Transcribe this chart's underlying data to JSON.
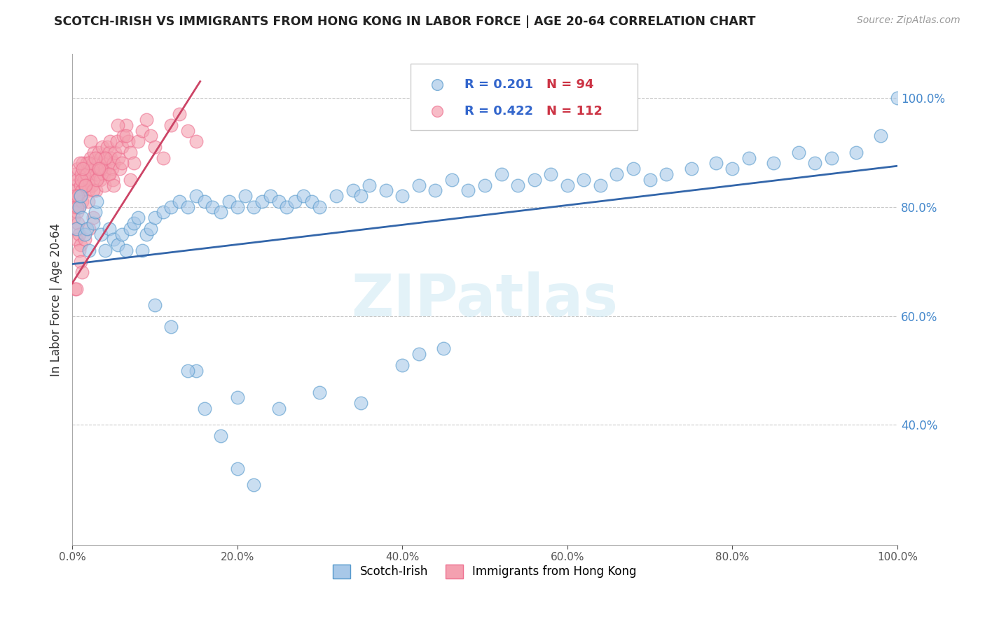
{
  "title": "SCOTCH-IRISH VS IMMIGRANTS FROM HONG KONG IN LABOR FORCE | AGE 20-64 CORRELATION CHART",
  "source": "Source: ZipAtlas.com",
  "ylabel": "In Labor Force | Age 20-64",
  "xlim": [
    0,
    1.0
  ],
  "ylim": [
    0.18,
    1.08
  ],
  "xticks": [
    0.0,
    0.2,
    0.4,
    0.6,
    0.8,
    1.0
  ],
  "xticklabels": [
    "0.0%",
    "20.0%",
    "40.0%",
    "60.0%",
    "80.0%",
    "100.0%"
  ],
  "yticks": [
    0.4,
    0.6,
    0.8,
    1.0
  ],
  "yticklabels": [
    "40.0%",
    "60.0%",
    "80.0%",
    "100.0%"
  ],
  "blue_R": 0.201,
  "blue_N": 94,
  "pink_R": 0.422,
  "pink_N": 112,
  "blue_color": "#a8c8e8",
  "pink_color": "#f4a0b0",
  "blue_edge_color": "#5599cc",
  "pink_edge_color": "#ee7090",
  "blue_line_color": "#3366aa",
  "pink_line_color": "#cc4466",
  "legend_blue_label": "Scotch-Irish",
  "legend_pink_label": "Immigrants from Hong Kong",
  "watermark": "ZIPatlas",
  "blue_line_x0": 0.0,
  "blue_line_x1": 1.0,
  "blue_line_y0": 0.695,
  "blue_line_y1": 0.875,
  "pink_line_x0": 0.0,
  "pink_line_x1": 0.155,
  "pink_line_y0": 0.66,
  "pink_line_y1": 1.03,
  "blue_scatter_x": [
    0.005,
    0.008,
    0.01,
    0.012,
    0.015,
    0.018,
    0.02,
    0.025,
    0.028,
    0.03,
    0.035,
    0.04,
    0.045,
    0.05,
    0.055,
    0.06,
    0.065,
    0.07,
    0.075,
    0.08,
    0.085,
    0.09,
    0.095,
    0.1,
    0.11,
    0.12,
    0.13,
    0.14,
    0.15,
    0.16,
    0.17,
    0.18,
    0.19,
    0.2,
    0.21,
    0.22,
    0.23,
    0.24,
    0.25,
    0.26,
    0.27,
    0.28,
    0.29,
    0.3,
    0.32,
    0.34,
    0.35,
    0.36,
    0.38,
    0.4,
    0.42,
    0.44,
    0.46,
    0.48,
    0.5,
    0.52,
    0.54,
    0.56,
    0.58,
    0.6,
    0.62,
    0.64,
    0.66,
    0.68,
    0.7,
    0.72,
    0.75,
    0.78,
    0.8,
    0.82,
    0.85,
    0.88,
    0.9,
    0.92,
    0.95,
    0.98,
    1.0,
    0.15,
    0.2,
    0.25,
    0.3,
    0.35,
    0.4,
    0.42,
    0.45,
    0.1,
    0.12,
    0.14,
    0.16,
    0.18,
    0.2,
    0.22
  ],
  "blue_scatter_y": [
    0.76,
    0.8,
    0.82,
    0.78,
    0.75,
    0.76,
    0.72,
    0.77,
    0.79,
    0.81,
    0.75,
    0.72,
    0.76,
    0.74,
    0.73,
    0.75,
    0.72,
    0.76,
    0.77,
    0.78,
    0.72,
    0.75,
    0.76,
    0.78,
    0.79,
    0.8,
    0.81,
    0.8,
    0.82,
    0.81,
    0.8,
    0.79,
    0.81,
    0.8,
    0.82,
    0.8,
    0.81,
    0.82,
    0.81,
    0.8,
    0.81,
    0.82,
    0.81,
    0.8,
    0.82,
    0.83,
    0.82,
    0.84,
    0.83,
    0.82,
    0.84,
    0.83,
    0.85,
    0.83,
    0.84,
    0.86,
    0.84,
    0.85,
    0.86,
    0.84,
    0.85,
    0.84,
    0.86,
    0.87,
    0.85,
    0.86,
    0.87,
    0.88,
    0.87,
    0.89,
    0.88,
    0.9,
    0.88,
    0.89,
    0.9,
    0.93,
    1.0,
    0.5,
    0.45,
    0.43,
    0.46,
    0.44,
    0.51,
    0.53,
    0.54,
    0.62,
    0.58,
    0.5,
    0.43,
    0.38,
    0.32,
    0.29
  ],
  "pink_scatter_x": [
    0.001,
    0.002,
    0.003,
    0.004,
    0.005,
    0.006,
    0.007,
    0.008,
    0.009,
    0.01,
    0.011,
    0.012,
    0.013,
    0.014,
    0.015,
    0.016,
    0.017,
    0.018,
    0.019,
    0.02,
    0.021,
    0.022,
    0.023,
    0.024,
    0.025,
    0.026,
    0.027,
    0.028,
    0.029,
    0.03,
    0.031,
    0.032,
    0.033,
    0.034,
    0.035,
    0.036,
    0.037,
    0.038,
    0.039,
    0.04,
    0.041,
    0.042,
    0.043,
    0.044,
    0.045,
    0.046,
    0.047,
    0.048,
    0.049,
    0.05,
    0.052,
    0.054,
    0.056,
    0.058,
    0.06,
    0.062,
    0.065,
    0.068,
    0.07,
    0.075,
    0.08,
    0.085,
    0.09,
    0.095,
    0.1,
    0.11,
    0.12,
    0.13,
    0.14,
    0.15,
    0.002,
    0.003,
    0.004,
    0.005,
    0.006,
    0.007,
    0.008,
    0.009,
    0.01,
    0.012,
    0.015,
    0.018,
    0.02,
    0.025,
    0.03,
    0.035,
    0.04,
    0.045,
    0.05,
    0.06,
    0.008,
    0.01,
    0.012,
    0.015,
    0.02,
    0.025,
    0.003,
    0.004,
    0.006,
    0.07,
    0.005,
    0.007,
    0.009,
    0.011,
    0.013,
    0.016,
    0.019,
    0.022,
    0.028,
    0.032,
    0.055,
    0.065
  ],
  "pink_scatter_y": [
    0.82,
    0.84,
    0.86,
    0.83,
    0.81,
    0.85,
    0.87,
    0.8,
    0.82,
    0.84,
    0.86,
    0.83,
    0.88,
    0.85,
    0.87,
    0.84,
    0.86,
    0.88,
    0.83,
    0.85,
    0.87,
    0.89,
    0.86,
    0.84,
    0.88,
    0.9,
    0.87,
    0.85,
    0.83,
    0.86,
    0.88,
    0.9,
    0.87,
    0.85,
    0.89,
    0.91,
    0.88,
    0.86,
    0.84,
    0.87,
    0.89,
    0.91,
    0.88,
    0.86,
    0.9,
    0.92,
    0.89,
    0.87,
    0.85,
    0.88,
    0.9,
    0.92,
    0.89,
    0.87,
    0.91,
    0.93,
    0.95,
    0.92,
    0.9,
    0.88,
    0.92,
    0.94,
    0.96,
    0.93,
    0.91,
    0.89,
    0.95,
    0.97,
    0.94,
    0.92,
    0.78,
    0.8,
    0.76,
    0.74,
    0.79,
    0.77,
    0.75,
    0.82,
    0.73,
    0.81,
    0.84,
    0.86,
    0.88,
    0.83,
    0.85,
    0.87,
    0.89,
    0.86,
    0.84,
    0.88,
    0.72,
    0.7,
    0.68,
    0.74,
    0.76,
    0.78,
    0.65,
    0.82,
    0.8,
    0.85,
    0.65,
    0.82,
    0.88,
    0.85,
    0.87,
    0.84,
    0.81,
    0.92,
    0.89,
    0.87,
    0.95,
    0.93
  ]
}
